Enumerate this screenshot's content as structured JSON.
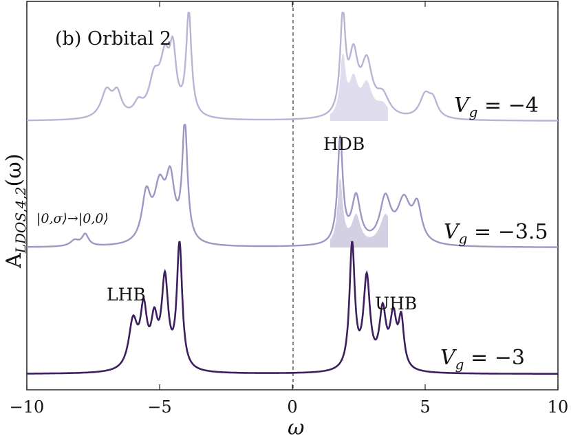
{
  "chart_data": {
    "type": "line",
    "panel_label": "(b) Orbital 2",
    "xlabel": "ω",
    "ylabel": "A",
    "ylabel_sub": "LDOS,4,2",
    "ylabel_arg": "(ω)",
    "xlim": [
      -10,
      10
    ],
    "xticks": [
      -10,
      -5,
      0,
      5,
      10
    ],
    "xtick_labels": [
      "−10",
      "−5",
      "0",
      "5",
      "10"
    ],
    "vertical_dashed_line_x": 0,
    "grid": false,
    "annotations": {
      "lhb": "LHB",
      "uhb": "UHB",
      "hdb": "HDB",
      "transition": "|0,σ⟩→|0,0⟩"
    },
    "series": [
      {
        "name": "Vg = −4",
        "label": "V",
        "label_sub": "g",
        "label_rest": " = −4",
        "color": "#b9b3d6",
        "peaks": [
          {
            "x": -7.0,
            "h": 0.26,
            "w": 0.25
          },
          {
            "x": -6.6,
            "h": 0.22,
            "w": 0.2
          },
          {
            "x": -5.8,
            "h": 0.12,
            "w": 0.2
          },
          {
            "x": -5.2,
            "h": 0.35,
            "w": 0.25
          },
          {
            "x": -4.8,
            "h": 0.5,
            "w": 0.22
          },
          {
            "x": -4.5,
            "h": 0.55,
            "w": 0.15
          },
          {
            "x": -3.9,
            "h": 1.0,
            "w": 0.12
          },
          {
            "x": 1.9,
            "h": 0.95,
            "w": 0.12
          },
          {
            "x": 2.3,
            "h": 0.55,
            "w": 0.2
          },
          {
            "x": 2.8,
            "h": 0.5,
            "w": 0.25
          },
          {
            "x": 3.4,
            "h": 0.2,
            "w": 0.3
          },
          {
            "x": 5.0,
            "h": 0.22,
            "w": 0.25
          },
          {
            "x": 5.3,
            "h": 0.15,
            "w": 0.2
          }
        ]
      },
      {
        "name": "Vg = −3.5",
        "label": "V",
        "label_sub": "g",
        "label_rest": " = −3.5",
        "color": "#9d97c4",
        "peaks": [
          {
            "x": -8.2,
            "h": 0.05,
            "w": 0.2
          },
          {
            "x": -7.8,
            "h": 0.1,
            "w": 0.15
          },
          {
            "x": -5.5,
            "h": 0.4,
            "w": 0.2
          },
          {
            "x": -5.0,
            "h": 0.45,
            "w": 0.25
          },
          {
            "x": -4.6,
            "h": 0.5,
            "w": 0.2
          },
          {
            "x": -4.05,
            "h": 1.0,
            "w": 0.12
          },
          {
            "x": 1.8,
            "h": 0.9,
            "w": 0.12
          },
          {
            "x": 2.4,
            "h": 0.4,
            "w": 0.2
          },
          {
            "x": 3.5,
            "h": 0.38,
            "w": 0.25
          },
          {
            "x": 4.2,
            "h": 0.36,
            "w": 0.3
          },
          {
            "x": 4.7,
            "h": 0.3,
            "w": 0.2
          }
        ]
      },
      {
        "name": "Vg = −3",
        "label": "V",
        "label_sub": "g",
        "label_rest": " = −3",
        "color": "#3b1f5e",
        "peaks": [
          {
            "x": -6.0,
            "h": 0.38,
            "w": 0.2
          },
          {
            "x": -5.6,
            "h": 0.45,
            "w": 0.15
          },
          {
            "x": -5.2,
            "h": 0.35,
            "w": 0.15
          },
          {
            "x": -4.8,
            "h": 0.7,
            "w": 0.15
          },
          {
            "x": -4.25,
            "h": 1.0,
            "w": 0.12
          },
          {
            "x": 2.25,
            "h": 1.0,
            "w": 0.12
          },
          {
            "x": 2.8,
            "h": 0.72,
            "w": 0.15
          },
          {
            "x": 3.4,
            "h": 0.45,
            "w": 0.15
          },
          {
            "x": 3.8,
            "h": 0.4,
            "w": 0.15
          },
          {
            "x": 4.1,
            "h": 0.38,
            "w": 0.12
          }
        ]
      }
    ]
  }
}
